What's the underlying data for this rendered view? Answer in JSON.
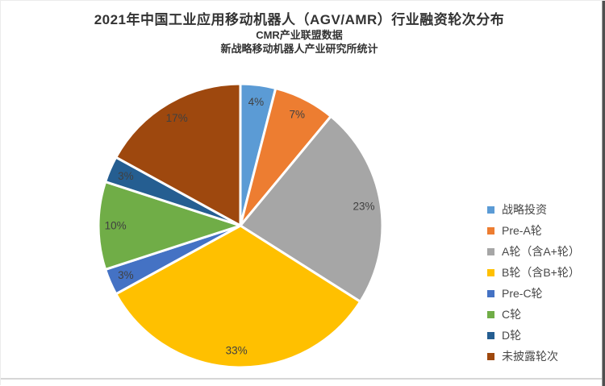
{
  "header": {
    "title": "2021年中国工业应用移动机器人（AGV/AMR）行业融资轮次分布",
    "subtitle1": "CMR产业联盟数据",
    "subtitle2": "新战略移动机器人产业研究所统计"
  },
  "chart_data": {
    "type": "pie",
    "title": "2021年中国工业应用移动机器人（AGV/AMR）行业融资轮次分布",
    "categories": [
      "战略投资",
      "Pre-A轮",
      "A轮（含A+轮）",
      "B轮（含B+轮）",
      "Pre-C轮",
      "C轮",
      "D轮",
      "未披露轮次"
    ],
    "values": [
      4,
      7,
      23,
      33,
      3,
      10,
      3,
      17
    ],
    "labels": [
      "4%",
      "7%",
      "23%",
      "33%",
      "3%",
      "10%",
      "3%",
      "17%"
    ],
    "colors": [
      "#5B9BD5",
      "#ED7D31",
      "#A6A6A6",
      "#FFC000",
      "#4472C4",
      "#70AD47",
      "#255E91",
      "#9E480E"
    ],
    "unit": "%",
    "start_angle_deg": 0,
    "direction": "clockwise",
    "label_position": "inside-end",
    "label_color": "#404040",
    "slice_border_color": "#ffffff",
    "legend_position": "right"
  }
}
